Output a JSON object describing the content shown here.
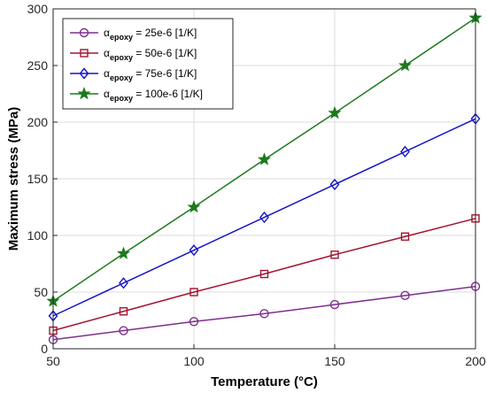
{
  "chart_data": {
    "type": "line",
    "xlabel": "Temperature (°C)",
    "ylabel": "Maximum stress (MPa)",
    "xlim": [
      50,
      200
    ],
    "ylim": [
      0,
      300
    ],
    "xticks": [
      50,
      100,
      150,
      200
    ],
    "yticks": [
      0,
      50,
      100,
      150,
      200,
      250,
      300
    ],
    "grid": true,
    "legend_position": "top-left",
    "x": [
      50,
      75,
      100,
      125,
      150,
      175,
      200
    ],
    "series": [
      {
        "name_main": "α",
        "name_sub": "epoxy",
        "name_rest": " = 25e-6 [1/K]",
        "color": "#7E2F8E",
        "marker": "circle",
        "values": [
          8,
          16,
          24,
          31,
          39,
          47,
          55
        ]
      },
      {
        "name_main": "α",
        "name_sub": "epoxy",
        "name_rest": " = 50e-6 [1/K]",
        "color": "#A2142F",
        "marker": "square",
        "values": [
          16,
          33,
          50,
          66,
          83,
          99,
          115
        ]
      },
      {
        "name_main": "α",
        "name_sub": "epoxy",
        "name_rest": " = 75e-6 [1/K]",
        "color": "#1515C8",
        "marker": "diamond",
        "values": [
          29,
          58,
          87,
          116,
          145,
          174,
          203
        ]
      },
      {
        "name_main": "α",
        "name_sub": "epoxy",
        "name_rest": " = 100e-6 [1/K]",
        "color": "#1C7A1C",
        "marker": "star",
        "values": [
          42,
          84,
          125,
          167,
          208,
          250,
          292
        ]
      }
    ]
  }
}
